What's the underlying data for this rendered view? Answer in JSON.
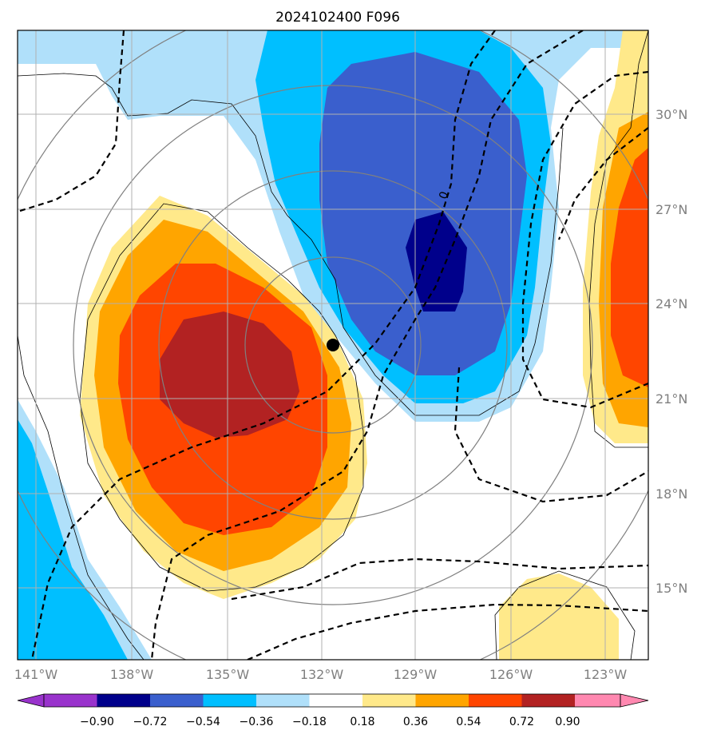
{
  "title": "2024102400 F096",
  "map": {
    "lat_labels": [
      "30°N",
      "27°N",
      "24°N",
      "21°N",
      "18°N",
      "15°N"
    ],
    "lon_labels": [
      "141°W",
      "138°W",
      "135°W",
      "132°W",
      "129°W",
      "126°W",
      "123°W"
    ],
    "storm_center": {
      "lon": "131.6°W",
      "lat": "22.7°N"
    },
    "zero_contour_label": "0"
  },
  "colorbar": {
    "levels": [
      "−0.90",
      "−0.72",
      "−0.54",
      "−0.36",
      "−0.18",
      "0.18",
      "0.36",
      "0.54",
      "0.72",
      "0.90"
    ],
    "colors": [
      "#9933cc",
      "#00008b",
      "#3a5fcd",
      "#00bfff",
      "#b0e0fa",
      "#ffffff",
      "#ffe98a",
      "#ffa500",
      "#ff4500",
      "#b22222",
      "#ff88b0"
    ]
  },
  "colors": {
    "light_blue": "#b0e0fa",
    "cyan": "#00bfff",
    "royal_blue": "#3a5fcd",
    "navy": "#00008b",
    "light_yellow": "#ffe98a",
    "orange": "#ffa500",
    "red_orange": "#ff4500",
    "dark_red": "#b22222",
    "grid": "#b0b0b0",
    "circles": "#808080"
  }
}
